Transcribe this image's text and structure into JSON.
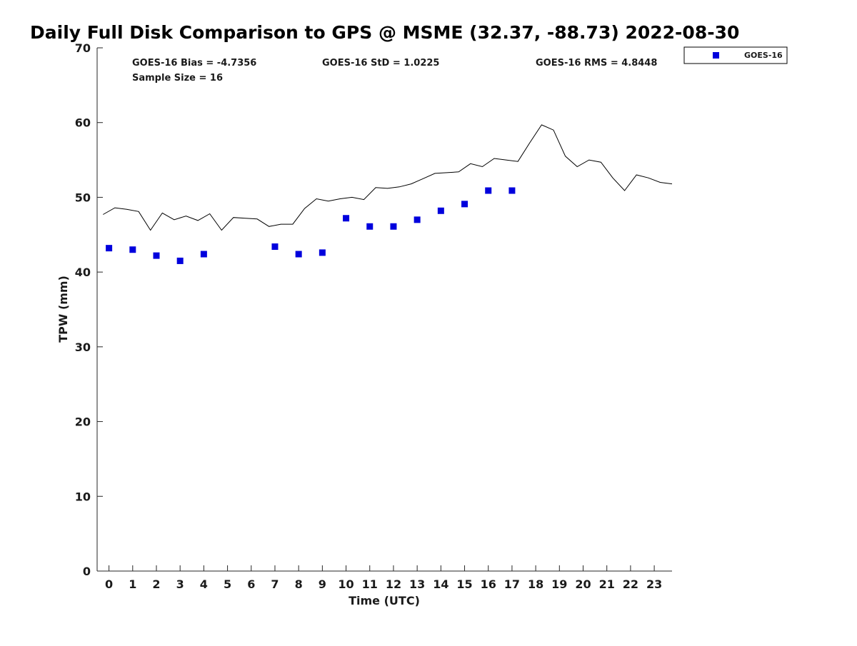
{
  "chart_data": {
    "type": "scatter",
    "title": "Daily Full Disk Comparison to GPS @ MSME (32.37, -88.73) 2022-08-30",
    "xlabel": "Time (UTC)",
    "ylabel": "TPW (mm)",
    "xlim": [
      -0.5,
      23.75
    ],
    "ylim": [
      0,
      70
    ],
    "xticks": [
      0,
      1,
      2,
      3,
      4,
      5,
      6,
      7,
      8,
      9,
      10,
      11,
      12,
      13,
      14,
      15,
      16,
      17,
      18,
      19,
      20,
      21,
      22,
      23
    ],
    "yticks": [
      0,
      10,
      20,
      30,
      40,
      50,
      60,
      70
    ],
    "grid": false,
    "legend_position": "outside top-right",
    "stats": {
      "bias": "GOES-16 Bias = -4.7356",
      "std": "GOES-16 StD = 1.0225",
      "rms": "GOES-16 RMS = 4.8448",
      "sample": "Sample Size = 16"
    },
    "series": [
      {
        "name": "GOES-16",
        "type": "scatter",
        "color": "#0000dd",
        "marker": "square",
        "points": [
          [
            0,
            43.2
          ],
          [
            1,
            43.0
          ],
          [
            2,
            42.2
          ],
          [
            3,
            41.5
          ],
          [
            4,
            42.4
          ],
          [
            7,
            43.4
          ],
          [
            8,
            42.4
          ],
          [
            9,
            42.6
          ],
          [
            10,
            47.2
          ],
          [
            11,
            46.1
          ],
          [
            12,
            46.1
          ],
          [
            13,
            47.0
          ],
          [
            14,
            48.2
          ],
          [
            15,
            49.1
          ],
          [
            16,
            50.9
          ],
          [
            17,
            50.9
          ]
        ]
      },
      {
        "type": "line",
        "color": "#000000",
        "points": [
          [
            -0.25,
            47.7
          ],
          [
            0.25,
            48.6
          ],
          [
            0.75,
            48.4
          ],
          [
            1.25,
            48.1
          ],
          [
            1.75,
            45.6
          ],
          [
            2.25,
            47.9
          ],
          [
            2.75,
            47.0
          ],
          [
            3.25,
            47.5
          ],
          [
            3.75,
            46.9
          ],
          [
            4.25,
            47.8
          ],
          [
            4.75,
            45.6
          ],
          [
            5.25,
            47.3
          ],
          [
            5.75,
            47.2
          ],
          [
            6.25,
            47.1
          ],
          [
            6.75,
            46.1
          ],
          [
            7.25,
            46.4
          ],
          [
            7.75,
            46.4
          ],
          [
            8.25,
            48.5
          ],
          [
            8.75,
            49.8
          ],
          [
            9.25,
            49.5
          ],
          [
            9.75,
            49.8
          ],
          [
            10.25,
            50.0
          ],
          [
            10.75,
            49.7
          ],
          [
            11.25,
            51.3
          ],
          [
            11.75,
            51.2
          ],
          [
            12.25,
            51.4
          ],
          [
            12.75,
            51.8
          ],
          [
            13.25,
            52.5
          ],
          [
            13.75,
            53.2
          ],
          [
            14.25,
            53.3
          ],
          [
            14.75,
            53.4
          ],
          [
            15.25,
            54.5
          ],
          [
            15.75,
            54.1
          ],
          [
            16.25,
            55.2
          ],
          [
            16.75,
            55.0
          ],
          [
            17.25,
            54.8
          ],
          [
            17.75,
            57.3
          ],
          [
            18.25,
            59.7
          ],
          [
            18.75,
            59.0
          ],
          [
            19.25,
            55.5
          ],
          [
            19.75,
            54.1
          ],
          [
            20.25,
            55.0
          ],
          [
            20.75,
            54.7
          ],
          [
            21.25,
            52.6
          ],
          [
            21.75,
            50.9
          ],
          [
            22.25,
            53.0
          ],
          [
            22.75,
            52.6
          ],
          [
            23.25,
            52.0
          ],
          [
            23.75,
            51.8
          ]
        ]
      }
    ]
  }
}
